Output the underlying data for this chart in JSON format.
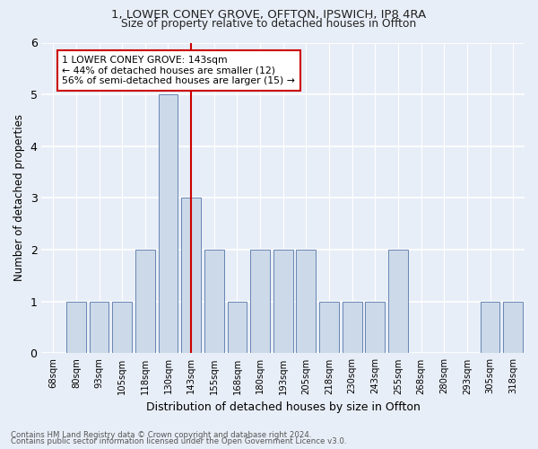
{
  "title1": "1, LOWER CONEY GROVE, OFFTON, IPSWICH, IP8 4RA",
  "title2": "Size of property relative to detached houses in Offton",
  "xlabel": "Distribution of detached houses by size in Offton",
  "ylabel": "Number of detached properties",
  "categories": [
    "68sqm",
    "80sqm",
    "93sqm",
    "105sqm",
    "118sqm",
    "130sqm",
    "143sqm",
    "155sqm",
    "168sqm",
    "180sqm",
    "193sqm",
    "205sqm",
    "218sqm",
    "230sqm",
    "243sqm",
    "255sqm",
    "268sqm",
    "280sqm",
    "293sqm",
    "305sqm",
    "318sqm"
  ],
  "values": [
    0,
    1,
    1,
    1,
    2,
    5,
    3,
    2,
    1,
    2,
    2,
    2,
    1,
    1,
    1,
    2,
    0,
    0,
    0,
    1,
    1
  ],
  "highlight_index": 6,
  "bar_color": "#ccd9e8",
  "bar_edge_color": "#5577aa",
  "highlight_line_color": "#cc0000",
  "annotation_text": "1 LOWER CONEY GROVE: 143sqm\n← 44% of detached houses are smaller (12)\n56% of semi-detached houses are larger (15) →",
  "annotation_box_color": "#ffffff",
  "annotation_box_edge": "#cc0000",
  "ylim": [
    0,
    6
  ],
  "yticks": [
    0,
    1,
    2,
    3,
    4,
    5,
    6
  ],
  "footer1": "Contains HM Land Registry data © Crown copyright and database right 2024.",
  "footer2": "Contains public sector information licensed under the Open Government Licence v3.0.",
  "bg_color": "#e8eef7",
  "plot_bg_color": "#e8eef7"
}
